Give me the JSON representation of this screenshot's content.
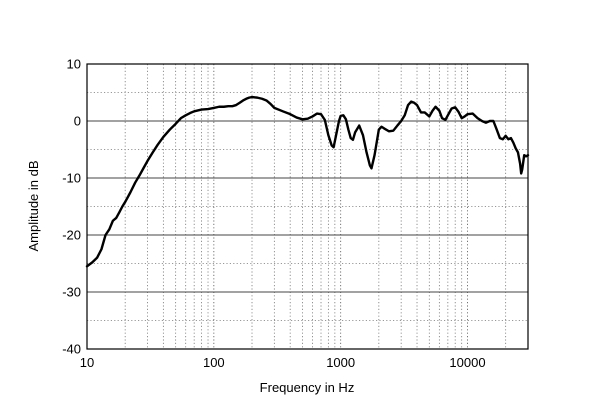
{
  "chart_data": {
    "type": "line",
    "title": "",
    "xlabel": "Frequency in Hz",
    "ylabel": "Amplitude in dB",
    "x_scale": "log",
    "xlim": [
      10,
      30000
    ],
    "ylim": [
      -40,
      10
    ],
    "x_ticks": [
      10,
      100,
      1000,
      10000
    ],
    "x_tick_labels": [
      "10",
      "100",
      "1000",
      "10000"
    ],
    "y_ticks": [
      10,
      0,
      -10,
      -20,
      -30,
      -40
    ],
    "y_tick_labels": [
      "10",
      "0",
      "-10",
      "-20",
      "-30",
      "-40"
    ],
    "grid": true,
    "legend": "none",
    "line_color": "#000000",
    "series": [
      {
        "points": [
          [
            10,
            -25.5
          ],
          [
            11,
            -24.8
          ],
          [
            12,
            -24.0
          ],
          [
            13,
            -22.5
          ],
          [
            14,
            -20.0
          ],
          [
            15,
            -19.0
          ],
          [
            16,
            -17.5
          ],
          [
            17,
            -17.0
          ],
          [
            18,
            -16.0
          ],
          [
            19,
            -15.0
          ],
          [
            20,
            -14.2
          ],
          [
            22,
            -12.5
          ],
          [
            24,
            -10.8
          ],
          [
            26,
            -9.5
          ],
          [
            28,
            -8.2
          ],
          [
            30,
            -7.0
          ],
          [
            33,
            -5.5
          ],
          [
            36,
            -4.2
          ],
          [
            40,
            -2.8
          ],
          [
            45,
            -1.5
          ],
          [
            50,
            -0.5
          ],
          [
            55,
            0.5
          ],
          [
            60,
            1.0
          ],
          [
            65,
            1.4
          ],
          [
            70,
            1.7
          ],
          [
            80,
            2.0
          ],
          [
            90,
            2.1
          ],
          [
            100,
            2.3
          ],
          [
            110,
            2.5
          ],
          [
            120,
            2.5
          ],
          [
            130,
            2.6
          ],
          [
            140,
            2.6
          ],
          [
            150,
            2.8
          ],
          [
            160,
            3.2
          ],
          [
            170,
            3.6
          ],
          [
            180,
            3.9
          ],
          [
            190,
            4.1
          ],
          [
            200,
            4.2
          ],
          [
            220,
            4.1
          ],
          [
            240,
            3.9
          ],
          [
            260,
            3.6
          ],
          [
            280,
            3.0
          ],
          [
            300,
            2.3
          ],
          [
            350,
            1.7
          ],
          [
            400,
            1.2
          ],
          [
            450,
            0.6
          ],
          [
            500,
            0.3
          ],
          [
            550,
            0.4
          ],
          [
            600,
            0.8
          ],
          [
            650,
            1.3
          ],
          [
            700,
            1.2
          ],
          [
            750,
            0.2
          ],
          [
            800,
            -2.5
          ],
          [
            850,
            -4.3
          ],
          [
            880,
            -4.6
          ],
          [
            920,
            -2.5
          ],
          [
            970,
            0.0
          ],
          [
            1000,
            0.9
          ],
          [
            1050,
            1.0
          ],
          [
            1100,
            0.3
          ],
          [
            1150,
            -1.5
          ],
          [
            1200,
            -3.0
          ],
          [
            1250,
            -3.3
          ],
          [
            1300,
            -2.0
          ],
          [
            1400,
            -0.8
          ],
          [
            1500,
            -2.5
          ],
          [
            1600,
            -5.5
          ],
          [
            1700,
            -7.8
          ],
          [
            1750,
            -8.3
          ],
          [
            1850,
            -6.0
          ],
          [
            2000,
            -1.5
          ],
          [
            2100,
            -1.0
          ],
          [
            2200,
            -1.3
          ],
          [
            2400,
            -1.8
          ],
          [
            2600,
            -1.7
          ],
          [
            2800,
            -0.8
          ],
          [
            3000,
            0.0
          ],
          [
            3200,
            1.0
          ],
          [
            3400,
            2.8
          ],
          [
            3600,
            3.4
          ],
          [
            3800,
            3.2
          ],
          [
            4000,
            2.8
          ],
          [
            4300,
            1.5
          ],
          [
            4600,
            1.5
          ],
          [
            5000,
            0.8
          ],
          [
            5300,
            1.8
          ],
          [
            5600,
            2.5
          ],
          [
            6000,
            1.8
          ],
          [
            6300,
            0.5
          ],
          [
            6700,
            0.2
          ],
          [
            7000,
            1.0
          ],
          [
            7500,
            2.2
          ],
          [
            8000,
            2.4
          ],
          [
            8500,
            1.6
          ],
          [
            9000,
            0.5
          ],
          [
            9500,
            0.8
          ],
          [
            10000,
            1.2
          ],
          [
            11000,
            1.3
          ],
          [
            12000,
            0.5
          ],
          [
            13000,
            0.0
          ],
          [
            14000,
            -0.3
          ],
          [
            15000,
            0.0
          ],
          [
            16000,
            0.0
          ],
          [
            17000,
            -1.5
          ],
          [
            18000,
            -3.0
          ],
          [
            19000,
            -3.2
          ],
          [
            20000,
            -2.6
          ],
          [
            21000,
            -3.2
          ],
          [
            22000,
            -3.0
          ],
          [
            23000,
            -3.8
          ],
          [
            24000,
            -4.8
          ],
          [
            25000,
            -5.5
          ],
          [
            26000,
            -7.5
          ],
          [
            26500,
            -9.2
          ],
          [
            27000,
            -8.5
          ],
          [
            28000,
            -6.0
          ],
          [
            29000,
            -6.2
          ],
          [
            30000,
            -6.0
          ]
        ]
      }
    ]
  }
}
